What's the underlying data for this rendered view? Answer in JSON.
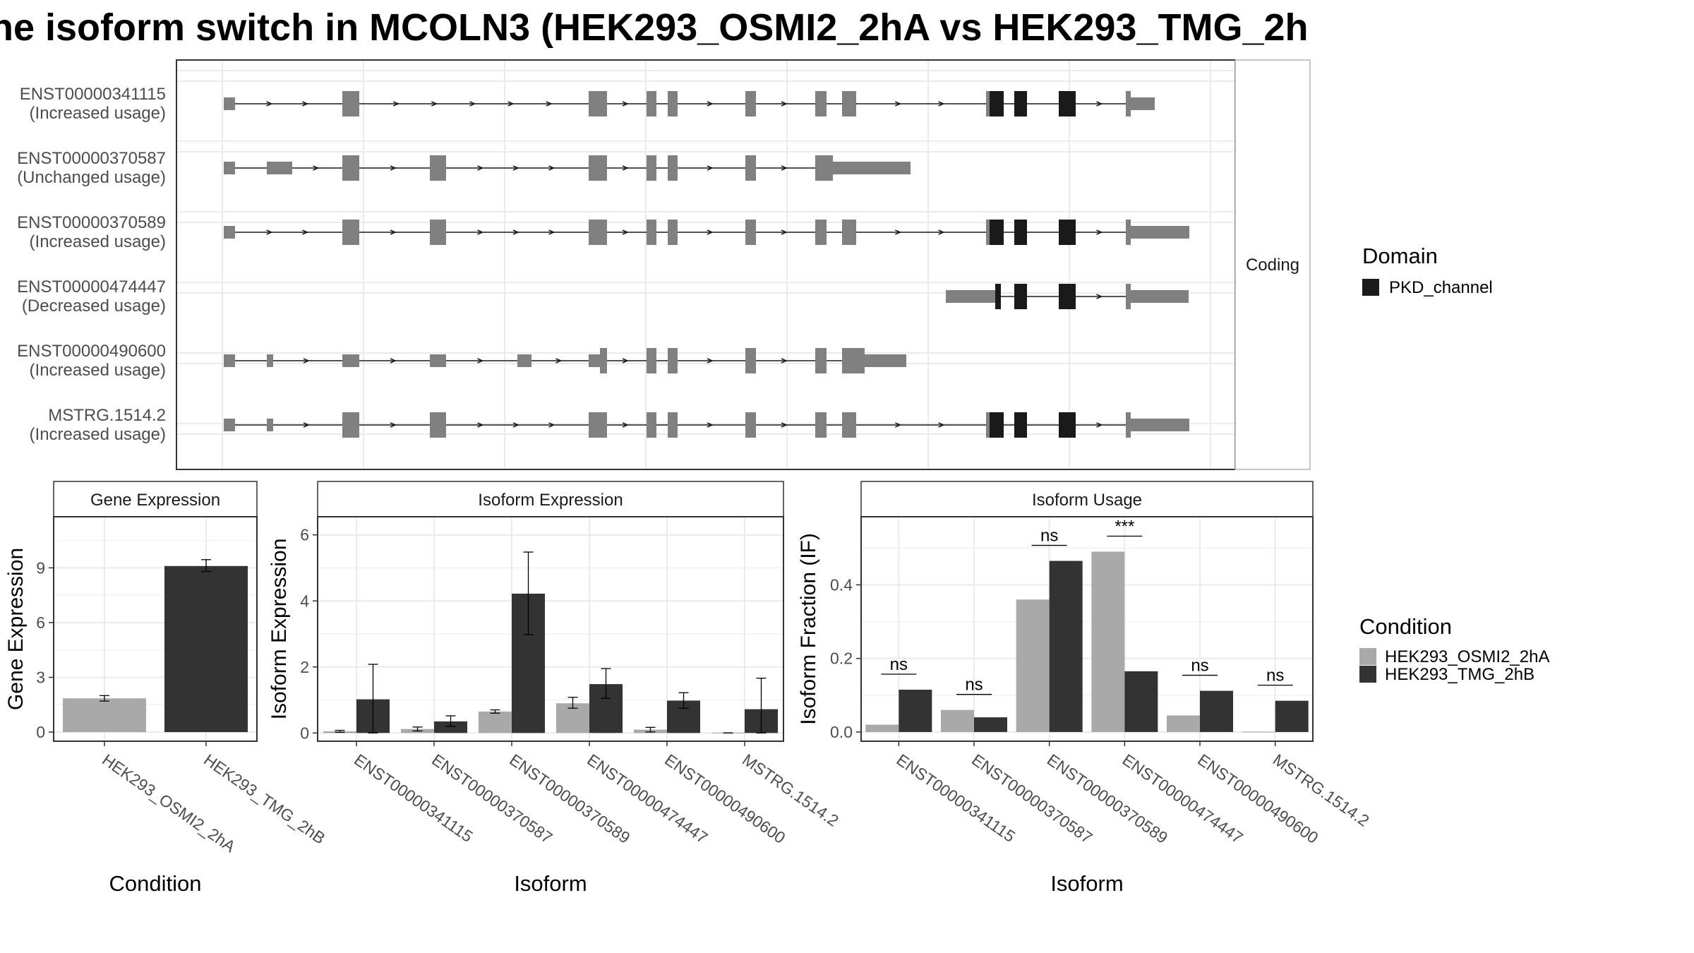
{
  "title": "he isoform switch in MCOLN3 (HEK293_OSMI2_2hA vs HEK293_TMG_2h",
  "colors": {
    "exon": "#808080",
    "domain": "#1a1a1a",
    "cond_a": "#a9a9a9",
    "cond_b": "#333333",
    "grid": "#ebebeb",
    "panel_border": "#333333"
  },
  "transcripts": [
    {
      "id": "ENST00000341115",
      "usage": "(Increased usage)"
    },
    {
      "id": "ENST00000370587",
      "usage": "(Unchanged usage)"
    },
    {
      "id": "ENST00000370589",
      "usage": "(Increased usage)"
    },
    {
      "id": "ENST00000474447",
      "usage": "(Decreased usage)"
    },
    {
      "id": "ENST00000490600",
      "usage": "(Increased usage)"
    },
    {
      "id": "MSTRG.1514.2",
      "usage": "(Increased usage)"
    }
  ],
  "structure_strip": "Coding",
  "legend_domain": {
    "title": "Domain",
    "items": [
      "PKD_channel"
    ]
  },
  "legend_condition": {
    "title": "Condition",
    "items": [
      "HEK293_OSMI2_2hA",
      "HEK293_TMG_2hB"
    ]
  },
  "chart_data": [
    {
      "type": "bar",
      "title": "Gene Expression",
      "xlabel": "Condition",
      "ylabel": "Gene Expression",
      "categories": [
        "HEK293_OSMI2_2hA",
        "HEK293_TMG_2hB"
      ],
      "values": [
        1.85,
        9.1
      ],
      "errors": [
        [
          1.7,
          2.0
        ],
        [
          8.8,
          9.45
        ]
      ],
      "ylim": [
        -0.5,
        11.8
      ],
      "yticks": [
        0,
        3,
        6,
        9
      ],
      "grid": true
    },
    {
      "type": "bar",
      "title": "Isoform Expression",
      "xlabel": "Isoform",
      "ylabel": "Isoform Expression",
      "categories": [
        "ENST00000341115",
        "ENST00000370587",
        "ENST00000370589",
        "ENST00000474447",
        "ENST00000490600",
        "MSTRG.1514.2"
      ],
      "series": [
        {
          "name": "HEK293_OSMI2_2hA",
          "values": [
            0.05,
            0.12,
            0.65,
            0.9,
            0.1,
            0.0
          ],
          "errors": [
            [
              0.02,
              0.08
            ],
            [
              0.06,
              0.18
            ],
            [
              0.6,
              0.7
            ],
            [
              0.75,
              1.08
            ],
            [
              0.03,
              0.17
            ],
            [
              0.0,
              0.0
            ]
          ]
        },
        {
          "name": "HEK293_TMG_2hB",
          "values": [
            1.02,
            0.35,
            4.22,
            1.48,
            0.98,
            0.72
          ],
          "errors": [
            [
              0.0,
              2.08
            ],
            [
              0.2,
              0.52
            ],
            [
              2.98,
              5.48
            ],
            [
              1.05,
              1.95
            ],
            [
              0.75,
              1.22
            ],
            [
              0.0,
              1.66
            ]
          ]
        }
      ],
      "ylim": [
        -0.25,
        6.55
      ],
      "yticks": [
        0,
        2,
        4,
        6
      ],
      "grid": true
    },
    {
      "type": "bar",
      "title": "Isoform Usage",
      "xlabel": "Isoform",
      "ylabel": "Isoform Fraction (IF)",
      "categories": [
        "ENST00000341115",
        "ENST00000370587",
        "ENST00000370589",
        "ENST00000474447",
        "ENST00000490600",
        "MSTRG.1514.2"
      ],
      "series": [
        {
          "name": "HEK293_OSMI2_2hA",
          "values": [
            0.02,
            0.06,
            0.36,
            0.49,
            0.045,
            0.0
          ]
        },
        {
          "name": "HEK293_TMG_2hB",
          "values": [
            0.115,
            0.04,
            0.465,
            0.165,
            0.112,
            0.085
          ]
        }
      ],
      "significance": [
        "ns",
        "ns",
        "ns",
        "***",
        "ns",
        "ns"
      ],
      "ylim": [
        -0.025,
        0.585
      ],
      "yticks": [
        0.0,
        0.2,
        0.4
      ],
      "grid": true
    }
  ]
}
